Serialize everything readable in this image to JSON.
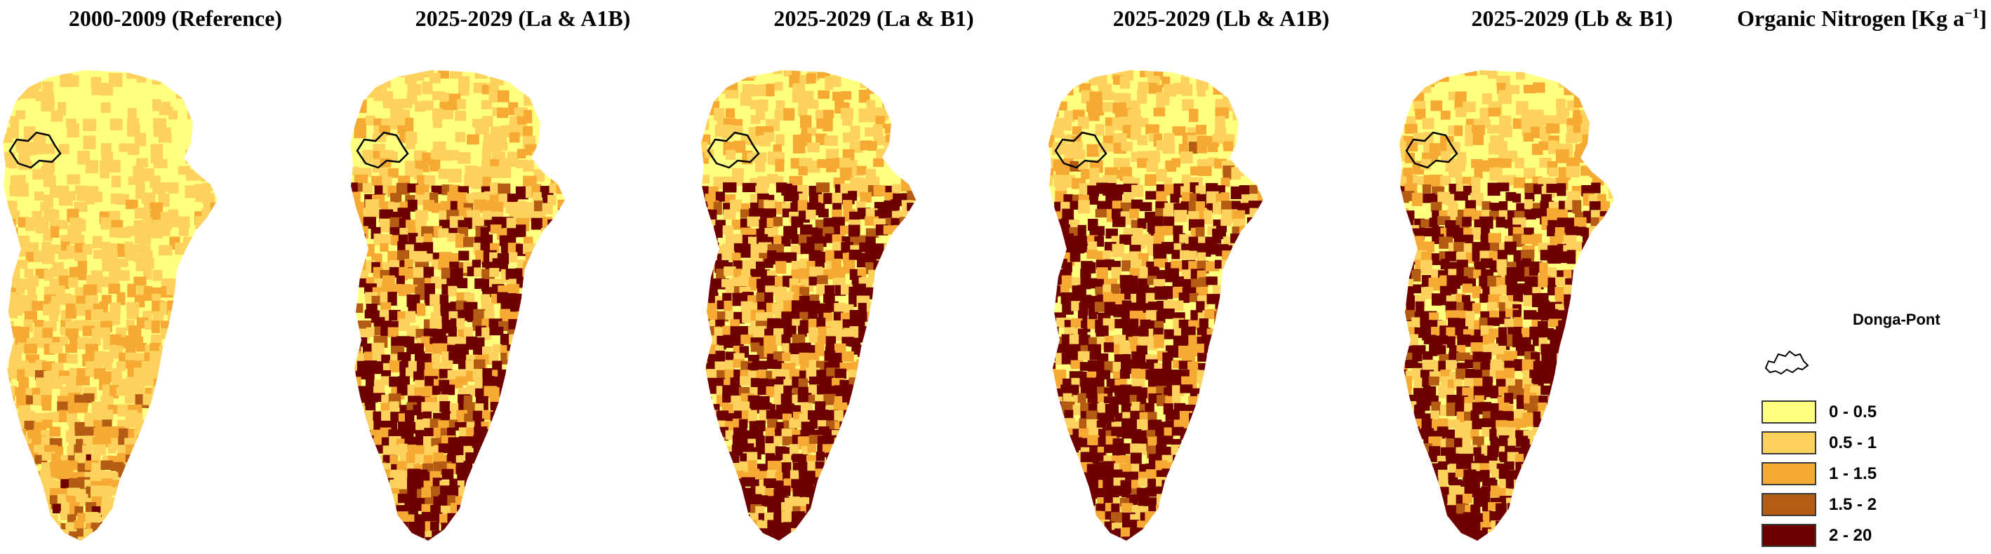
{
  "panels": [
    {
      "title": "2000-2009 (Reference)",
      "scenario": "reference"
    },
    {
      "title": "2025-2029 (La & A1B)",
      "scenario": "la_a1b"
    },
    {
      "title": "2025-2029 (La & B1)",
      "scenario": "la_b1"
    },
    {
      "title": "2025-2029 (Lb & A1B)",
      "scenario": "lb_a1b"
    },
    {
      "title": "2025-2029 (Lb & B1)",
      "scenario": "lb_b1"
    }
  ],
  "legend": {
    "title": "Organic Nitrogen [Kg a",
    "title_exponent": "−1",
    "title_close": "]",
    "outlet_label": "Donga-Pont",
    "classes": [
      {
        "label": "0 - 0.5",
        "color": "#ffff80"
      },
      {
        "label": "0.5 - 1",
        "color": "#fcd25c"
      },
      {
        "label": "1 - 1.5",
        "color": "#f6aa33"
      },
      {
        "label": "1.5 - 2",
        "color": "#b45c14"
      },
      {
        "label": "2 - 20",
        "color": "#6e0000"
      }
    ]
  }
}
